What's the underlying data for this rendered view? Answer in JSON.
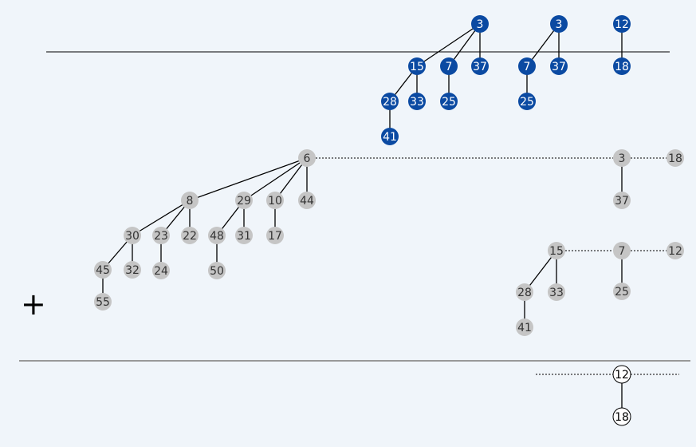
{
  "operation_symbol": "+",
  "colors": {
    "blue_node": "#0b4aa2",
    "gray_node": "#c5c5c5",
    "white_node": "#ffffff",
    "edge": "#000000",
    "divider": "#999999",
    "background": "#f0f5fa"
  },
  "top_heap": {
    "trees": [
      {
        "root": "3",
        "children": [
          {
            "key": "15",
            "children": [
              {
                "key": "28",
                "children": [
                  {
                    "key": "41",
                    "children": []
                  }
                ]
              },
              {
                "key": "33",
                "children": []
              }
            ]
          },
          {
            "key": "7",
            "children": [
              {
                "key": "25",
                "children": []
              }
            ]
          },
          {
            "key": "37",
            "children": []
          }
        ]
      },
      {
        "root": "3",
        "children": [
          {
            "key": "7",
            "children": [
              {
                "key": "25",
                "children": []
              }
            ]
          },
          {
            "key": "37",
            "children": []
          }
        ]
      },
      {
        "root": "12",
        "children": [
          {
            "key": "18",
            "children": []
          }
        ]
      }
    ]
  },
  "middle_heap": {
    "roots": [
      "6",
      "3",
      "18"
    ],
    "trees": [
      {
        "root": "6",
        "children": [
          {
            "key": "8",
            "children": [
              {
                "key": "30",
                "children": [
                  {
                    "key": "45",
                    "children": [
                      {
                        "key": "55",
                        "children": []
                      }
                    ]
                  },
                  {
                    "key": "32",
                    "children": []
                  }
                ]
              },
              {
                "key": "23",
                "children": [
                  {
                    "key": "24",
                    "children": []
                  }
                ]
              },
              {
                "key": "22",
                "children": []
              }
            ]
          },
          {
            "key": "29",
            "children": [
              {
                "key": "48",
                "children": [
                  {
                    "key": "50",
                    "children": []
                  }
                ]
              },
              {
                "key": "31",
                "children": []
              }
            ]
          },
          {
            "key": "10",
            "children": [
              {
                "key": "17",
                "children": []
              }
            ]
          },
          {
            "key": "44",
            "children": []
          }
        ]
      },
      {
        "root": "3",
        "children": [
          {
            "key": "37",
            "children": []
          }
        ]
      },
      {
        "root": "18",
        "children": []
      }
    ]
  },
  "second_heap": {
    "roots": [
      "15",
      "7",
      "12"
    ],
    "trees": [
      {
        "root": "15",
        "children": [
          {
            "key": "28",
            "children": [
              {
                "key": "41",
                "children": []
              }
            ]
          },
          {
            "key": "33",
            "children": []
          }
        ]
      },
      {
        "root": "7",
        "children": [
          {
            "key": "25",
            "children": []
          }
        ]
      },
      {
        "root": "12",
        "children": []
      }
    ]
  },
  "result_heap": {
    "roots": [
      "12"
    ],
    "trees": [
      {
        "root": "12",
        "children": [
          {
            "key": "18",
            "children": []
          }
        ]
      }
    ]
  }
}
